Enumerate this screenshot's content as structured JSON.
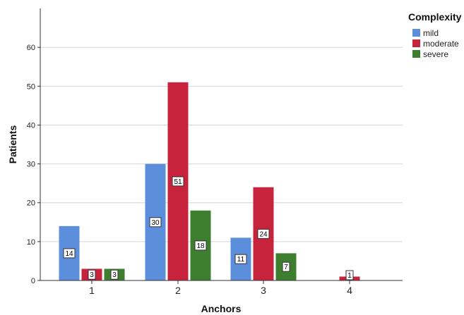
{
  "chart_data": {
    "type": "bar",
    "categories": [
      "1",
      "2",
      "3",
      "4"
    ],
    "series": [
      {
        "name": "mild",
        "color": "#5b8fdc",
        "values": [
          14,
          30,
          11,
          null
        ]
      },
      {
        "name": "moderate",
        "color": "#c8233c",
        "values": [
          3,
          51,
          24,
          1
        ]
      },
      {
        "name": "severe",
        "color": "#3d7f2e",
        "values": [
          3,
          18,
          7,
          null
        ]
      }
    ],
    "title": "",
    "xlabel": "Anchors",
    "ylabel": "Patients",
    "ylim": [
      0,
      70
    ],
    "yticks": [
      0,
      10,
      20,
      30,
      40,
      50,
      60
    ],
    "grid": true,
    "legend": {
      "title": "Complexity",
      "placement": "top-right"
    },
    "data_labels": true
  }
}
